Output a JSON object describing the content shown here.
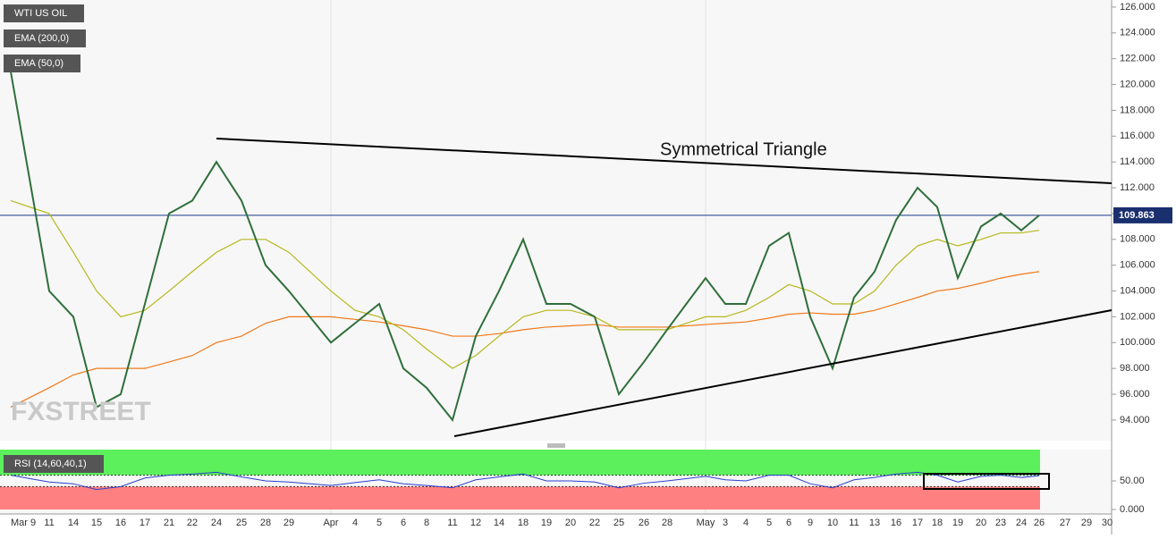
{
  "chart_data": {
    "type": "line",
    "title": "WTI US OIL",
    "annotation": "Symmetrical Triangle",
    "watermark": "FXSTREET",
    "current_price": {
      "value": 109.863,
      "label": "109.863"
    },
    "categories": [
      "Mar 9",
      "11",
      "14",
      "15",
      "16",
      "17",
      "21",
      "22",
      "24",
      "25",
      "28",
      "29",
      "Apr",
      "4",
      "5",
      "6",
      "8",
      "11",
      "12",
      "14",
      "18",
      "19",
      "20",
      "22",
      "25",
      "26",
      "28",
      "May",
      "3",
      "4",
      "5",
      "6",
      "9",
      "10",
      "11",
      "13",
      "16",
      "17",
      "18",
      "19",
      "20",
      "23",
      "24",
      "26",
      "27",
      "29",
      "30"
    ],
    "series": [
      {
        "name": "WTI US OIL",
        "color": "#2f6f3a",
        "values": [
          121,
          104,
          102,
          95,
          96,
          103,
          110,
          111,
          114,
          111,
          106,
          104,
          100,
          101.5,
          103,
          98,
          96.5,
          94,
          100.5,
          104,
          108,
          103,
          103,
          102,
          96,
          98.5,
          101,
          105,
          103,
          103,
          107.5,
          108.5,
          102,
          98,
          103.5,
          105.5,
          109.5,
          112,
          110.5,
          105,
          109,
          110,
          108.7,
          109.863,
          null,
          null,
          null
        ]
      },
      {
        "name": "EMA (200,0)",
        "color": "#f07818",
        "values": [
          95,
          96.5,
          97.5,
          98,
          98,
          98,
          98.5,
          99,
          100,
          100.5,
          101.5,
          102,
          102,
          101.8,
          101.6,
          101.3,
          101,
          100.5,
          100.5,
          100.7,
          101,
          101.2,
          101.3,
          101.4,
          101.2,
          101.2,
          101.2,
          101.4,
          101.5,
          101.6,
          101.9,
          102.2,
          102.3,
          102.2,
          102.2,
          102.5,
          103,
          103.5,
          104,
          104.2,
          104.6,
          105,
          105.3,
          105.5,
          null,
          null,
          null
        ]
      },
      {
        "name": "EMA (50,0)",
        "color": "#b5b81c",
        "values": [
          111,
          110,
          107,
          104,
          102,
          102.5,
          104,
          105.5,
          107,
          108,
          108,
          107,
          104,
          102.5,
          102,
          101,
          99.5,
          98,
          99,
          100.5,
          102,
          102.5,
          102.5,
          102,
          101,
          101,
          101,
          102,
          102,
          102.5,
          103.5,
          104.5,
          104,
          103,
          103,
          104,
          106,
          107.5,
          108,
          107.5,
          108,
          108.5,
          108.5,
          108.7,
          null,
          null,
          null
        ]
      }
    ],
    "ylim": [
      92.4,
      126.55
    ],
    "yticks": [
      {
        "value": 94,
        "label": "94.000"
      },
      {
        "value": 96,
        "label": "96.000"
      },
      {
        "value": 98,
        "label": "98.000"
      },
      {
        "value": 100,
        "label": "100.000"
      },
      {
        "value": 102,
        "label": "102.000"
      },
      {
        "value": 104,
        "label": "104.000"
      },
      {
        "value": 106,
        "label": "106.000"
      },
      {
        "value": 108,
        "label": "108.000"
      },
      {
        "value": 110,
        "label": "110.000"
      },
      {
        "value": 112,
        "label": "112.000"
      },
      {
        "value": 114,
        "label": "114.000"
      },
      {
        "value": 116,
        "label": "116.000"
      },
      {
        "value": 118,
        "label": "118.000"
      },
      {
        "value": 120,
        "label": "120.000"
      },
      {
        "value": 122,
        "label": "122.000"
      },
      {
        "value": 124,
        "label": "124.000"
      },
      {
        "value": 126,
        "label": "126.000"
      }
    ],
    "rsi": {
      "name": "RSI (14,60,40,1)",
      "color": "#2a3fd0",
      "values": [
        60,
        48,
        45,
        35,
        40,
        55,
        60,
        62,
        65,
        57,
        50,
        48,
        42,
        47,
        52,
        45,
        42,
        38,
        52,
        57,
        62,
        50,
        50,
        48,
        38,
        46,
        50,
        58,
        52,
        50,
        60,
        60,
        45,
        38,
        52,
        56,
        62,
        65,
        60,
        48,
        58,
        60,
        56,
        59,
        null,
        null,
        null
      ],
      "ylim": [
        0,
        100
      ],
      "upper": 60,
      "lower": 40,
      "yticks": [
        {
          "value": 0,
          "label": "0.000"
        },
        {
          "value": 50,
          "label": "50.00"
        }
      ]
    }
  }
}
